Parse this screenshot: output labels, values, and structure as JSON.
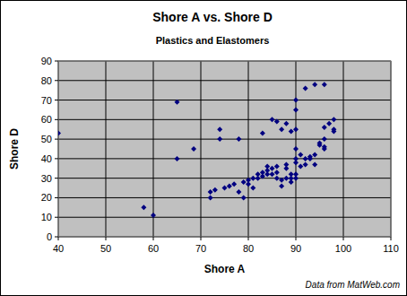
{
  "chart_data": {
    "type": "scatter",
    "title": "Shore A vs. Shore D",
    "subtitle": "Plastics and Elastomers",
    "x_label": "Shore A",
    "y_label": "Shore D",
    "annotation": "Data from MatWeb.com",
    "color": "#000080",
    "marker": "diamond",
    "grid": true,
    "xlim": [
      40,
      110
    ],
    "ylim": [
      0,
      90
    ],
    "xticks": [
      40,
      50,
      60,
      70,
      80,
      90,
      100,
      110
    ],
    "yticks": [
      0,
      10,
      20,
      30,
      40,
      50,
      60,
      70,
      80,
      90
    ],
    "x": [
      40,
      58,
      60,
      65,
      65,
      68.5,
      72,
      72,
      73,
      74,
      74,
      75,
      76,
      77,
      78,
      78,
      79,
      79,
      80,
      80,
      81,
      81,
      82,
      82,
      83,
      83,
      83,
      84,
      84,
      84,
      85,
      85,
      85,
      86,
      86,
      86,
      86,
      87,
      87,
      87,
      88,
      88,
      88,
      88,
      89,
      89,
      89,
      89,
      90,
      90,
      90,
      90,
      90,
      90,
      90,
      90,
      91,
      91,
      92,
      92,
      92,
      93,
      93,
      94,
      94,
      94,
      95,
      95,
      96,
      96,
      96,
      96,
      96,
      97,
      98,
      98,
      98
    ],
    "values": [
      53,
      15,
      11,
      69,
      40,
      45,
      20,
      23,
      24,
      50,
      55,
      25,
      26,
      27,
      50,
      23,
      20,
      28,
      27,
      29,
      30,
      25,
      30,
      32,
      31,
      33,
      53,
      32,
      34,
      36,
      35,
      32,
      60,
      59,
      33,
      36,
      30,
      29,
      26,
      55,
      58,
      30,
      35,
      37,
      32,
      54,
      30,
      28,
      30,
      32,
      40,
      55,
      65,
      70,
      45,
      38,
      36,
      42,
      76,
      40,
      37,
      41,
      40,
      78,
      37,
      42,
      47,
      48,
      78,
      46,
      50,
      56,
      45,
      58,
      60,
      55,
      54
    ]
  }
}
